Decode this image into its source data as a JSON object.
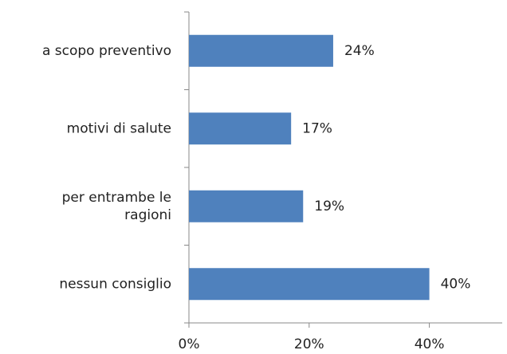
{
  "chart_data": {
    "type": "hbar",
    "categories": [
      "a scopo preventivo",
      "motivi di salute",
      "per entrambe le\nragioni",
      "nessun consiglio"
    ],
    "values": [
      24,
      17,
      19,
      40
    ],
    "value_labels": [
      "24%",
      "17%",
      "19%",
      "40%"
    ],
    "color": "#4f81bd",
    "xlim": [
      0,
      50
    ],
    "xticks": [
      {
        "value": 0,
        "label": "0%"
      },
      {
        "value": 20,
        "label": "20%"
      },
      {
        "value": 40,
        "label": "40%"
      }
    ]
  }
}
